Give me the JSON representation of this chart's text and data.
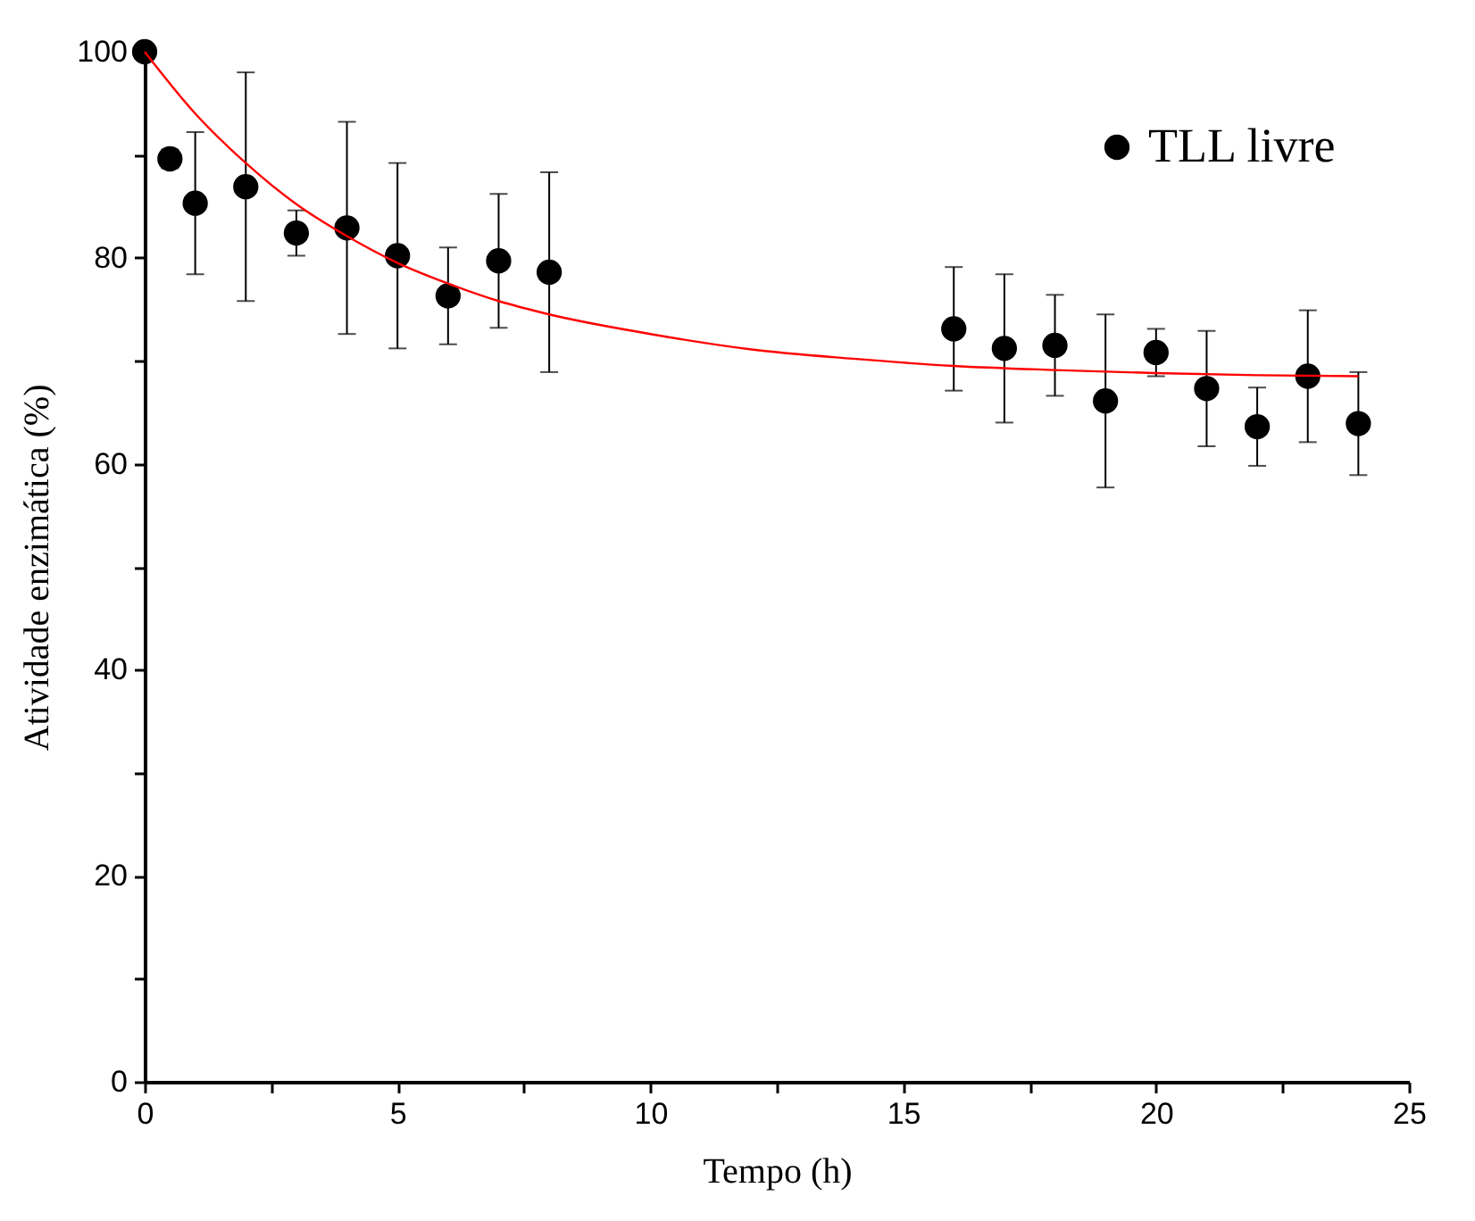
{
  "chart_data": {
    "type": "scatter",
    "xlabel": "Tempo (h)",
    "ylabel": "Atividade enzimática (%)",
    "xlim": [
      0,
      25
    ],
    "xticks": [
      0,
      {
        "value": 2.5,
        "label": null
      },
      5,
      {
        "value": 7.5,
        "label": null
      },
      10,
      {
        "value": 12.5,
        "label": null
      },
      15,
      {
        "value": 17.5,
        "label": null
      },
      20,
      {
        "value": 22.5,
        "label": null
      },
      25
    ],
    "ylim": [
      0,
      100
    ],
    "yticks": [
      0,
      {
        "value": 10,
        "label": null
      },
      20,
      {
        "value": 30,
        "label": null
      },
      40,
      {
        "value": 50,
        "label": null
      },
      60,
      {
        "value": 70,
        "label": null
      },
      80,
      {
        "value": 90,
        "label": null
      },
      100
    ],
    "grid": false,
    "legend": "top right",
    "marker": "circle",
    "series": [
      {
        "name": "TLL livre",
        "color": "#000000",
        "x": [
          0,
          0.5,
          1,
          2,
          3,
          4,
          5,
          6,
          7,
          8,
          16,
          17,
          18,
          19,
          20,
          21,
          22,
          23,
          24
        ],
        "values": [
          100,
          89.6,
          85.3,
          86.9,
          82.4,
          82.9,
          80.2,
          76.3,
          79.7,
          78.6,
          73.1,
          71.2,
          71.5,
          66.1,
          70.8,
          67.3,
          63.6,
          68.5,
          63.9
        ],
        "errors": [
          null,
          0.9,
          6.9,
          11.1,
          2.2,
          10.3,
          9,
          4.7,
          6.5,
          9.7,
          6,
          7.2,
          4.9,
          8.4,
          2.3,
          5.6,
          3.8,
          6.4,
          5
        ]
      },
      {
        "type": "line",
        "color": "#ff0000",
        "line_style": "solid",
        "marker": "none",
        "x": [
          0,
          1,
          2,
          3,
          4,
          5,
          6,
          7,
          8,
          10,
          12,
          14,
          16,
          18,
          20,
          22,
          24
        ],
        "values": [
          100,
          94.0,
          89.2,
          85.2,
          82.1,
          79.5,
          77.5,
          75.8,
          74.5,
          72.6,
          71.1,
          70.2,
          69.5,
          69.1,
          68.8,
          68.6,
          68.5
        ]
      }
    ]
  }
}
